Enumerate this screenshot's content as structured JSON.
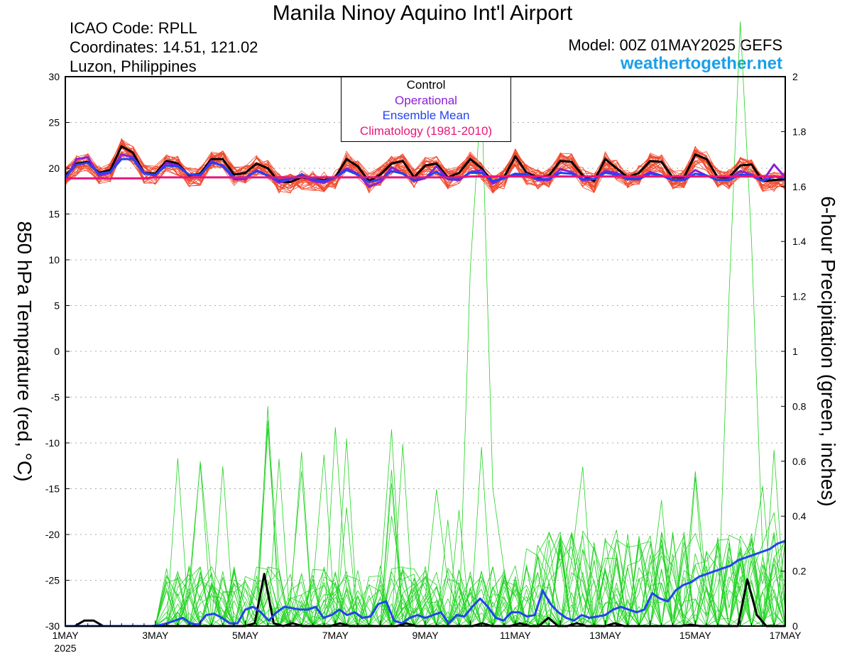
{
  "header": {
    "title": "Manila Ninoy Aquino Int'l Airport",
    "icao": "ICAO Code: RPLL",
    "coordinates": "Coordinates: 14.51, 121.02",
    "region": "Luzon, Philippines",
    "model": "Model: 00Z 01MAY2025 GEFS",
    "site": "weathertogether.net"
  },
  "legend": {
    "control": "Control",
    "operational": "Operational",
    "ensemble_mean": "Ensemble Mean",
    "climatology": "Climatology (1981-2010)"
  },
  "colors": {
    "members_temp": "#f04a2e",
    "members_precip": "#22d322",
    "control": "#000000",
    "operational": "#8b20d6",
    "ensemble_mean": "#2244ee",
    "climatology": "#e8167a",
    "site": "#1a9fea",
    "grid": "#aaaaaa"
  },
  "chart_data": {
    "type": "line",
    "title": "Manila Ninoy Aquino Int'l Airport",
    "xlabel": "",
    "ylabel": "850 hPa Temprature (red, °C)",
    "y2label": "6-hour Precipitation (green, inches)",
    "xlim": [
      0,
      64
    ],
    "ylim": [
      -30,
      30
    ],
    "y2lim": [
      0,
      2
    ],
    "x_ticks": [
      {
        "x": 0,
        "label": "1MAY",
        "sublabel": "2025"
      },
      {
        "x": 8,
        "label": "3MAY"
      },
      {
        "x": 16,
        "label": "5MAY"
      },
      {
        "x": 24,
        "label": "7MAY"
      },
      {
        "x": 32,
        "label": "9MAY"
      },
      {
        "x": 40,
        "label": "11MAY"
      },
      {
        "x": 48,
        "label": "13MAY"
      },
      {
        "x": 56,
        "label": "15MAY"
      },
      {
        "x": 64,
        "label": "17MAY"
      }
    ],
    "y_ticks": [
      30,
      25,
      20,
      15,
      10,
      5,
      0,
      -5,
      -10,
      -15,
      -20,
      -25,
      -30
    ],
    "y2_ticks": [
      {
        "v": 2,
        "label": "2"
      },
      {
        "v": 1.8,
        "label": "1.8"
      },
      {
        "v": 1.6,
        "label": "1.6"
      },
      {
        "v": 1.4,
        "label": "1.4"
      },
      {
        "v": 1.2,
        "label": "1.2"
      },
      {
        "v": 1,
        "label": "1"
      },
      {
        "v": 0.8,
        "label": "0.8"
      },
      {
        "v": 0.6,
        "label": "0.6"
      },
      {
        "v": 0.4,
        "label": "0.4"
      },
      {
        "v": 0.2,
        "label": "0.2"
      },
      {
        "v": 0,
        "label": "0"
      }
    ],
    "grid": true,
    "series": [
      {
        "name": "Control",
        "axis": "left",
        "values": [
          19.2,
          20.5,
          20.7,
          19.5,
          19.8,
          22.4,
          21.7,
          19.5,
          19.4,
          20.8,
          20.5,
          19.2,
          19.4,
          21.0,
          21.0,
          19.3,
          19.5,
          20.5,
          20.0,
          18.5,
          18.5,
          19.0,
          18.8,
          18.7,
          19.0,
          21.0,
          20.2,
          18.6,
          19.3,
          20.5,
          20.8,
          19.0,
          20.3,
          20.5,
          19.0,
          19.5,
          21.0,
          20.0,
          18.5,
          19.0,
          21.3,
          19.5,
          19.0,
          19.2,
          20.8,
          20.7,
          19.2,
          18.6,
          21.0,
          20.0,
          19.0,
          19.5,
          20.8,
          20.7,
          19.0,
          19.0,
          21.5,
          21.0,
          19.0,
          19.0,
          20.3,
          20.4,
          18.6,
          18.7,
          18.8
        ]
      },
      {
        "name": "Operational",
        "axis": "left",
        "values": [
          18.8,
          21.0,
          21.2,
          19.2,
          19.5,
          21.5,
          21.2,
          19.5,
          19.2,
          20.6,
          20.3,
          19.3,
          19.2,
          20.8,
          20.2,
          18.8,
          18.8,
          19.8,
          19.2,
          18.4,
          18.8,
          19.2,
          18.6,
          18.4,
          19.0,
          20.0,
          19.4,
          18.0,
          18.5,
          20.1,
          19.4,
          18.6,
          18.9,
          20.2,
          18.8,
          18.7,
          19.6,
          19.8,
          18.3,
          19.0,
          19.2,
          19.4,
          18.7,
          18.7,
          19.9,
          19.6,
          18.7,
          18.8,
          19.7,
          19.5,
          18.9,
          18.9,
          19.6,
          19.2,
          18.7,
          18.8,
          19.8,
          19.2,
          18.7,
          18.8,
          19.7,
          19.3,
          18.6,
          20.4,
          19.0
        ]
      },
      {
        "name": "Ensemble Mean",
        "axis": "left",
        "values": [
          19.0,
          20.4,
          20.6,
          19.4,
          19.6,
          21.0,
          21.0,
          19.4,
          19.3,
          20.3,
          20.2,
          19.3,
          19.3,
          20.6,
          20.3,
          19.0,
          19.0,
          19.7,
          19.2,
          18.7,
          18.8,
          19.3,
          18.8,
          18.6,
          19.0,
          19.8,
          19.3,
          18.5,
          18.8,
          19.7,
          19.4,
          18.7,
          19.0,
          19.6,
          18.8,
          18.8,
          19.5,
          19.5,
          18.6,
          18.9,
          19.4,
          19.3,
          18.8,
          18.8,
          19.5,
          19.4,
          18.8,
          18.8,
          19.5,
          19.3,
          18.8,
          18.8,
          19.4,
          19.2,
          18.7,
          18.7,
          19.4,
          19.2,
          18.7,
          18.7,
          19.3,
          19.2,
          18.6,
          19.1,
          18.9
        ]
      },
      {
        "name": "Climatology (1981-2010)",
        "axis": "left",
        "values": [
          18.9,
          18.9,
          18.9,
          18.9,
          18.9,
          18.9,
          18.9,
          18.9,
          19.0,
          19.0,
          19.0,
          19.0,
          19.0,
          19.0,
          19.0,
          19.0,
          19.0,
          19.0,
          19.0,
          19.0,
          19.0,
          19.0,
          19.0,
          19.0,
          19.0,
          19.0,
          19.0,
          19.0,
          19.0,
          19.0,
          19.0,
          19.0,
          19.0,
          19.0,
          19.0,
          19.0,
          19.1,
          19.1,
          19.1,
          19.1,
          19.1,
          19.1,
          19.1,
          19.1,
          19.1,
          19.1,
          19.1,
          19.1,
          19.1,
          19.1,
          19.1,
          19.1,
          19.1,
          19.1,
          19.1,
          19.1,
          19.1,
          19.1,
          19.1,
          19.1,
          19.1,
          19.1,
          19.1,
          19.1,
          19.1
        ]
      },
      {
        "name": "Control",
        "axis": "right",
        "values": [
          0,
          0,
          0.02,
          0.02,
          0,
          0,
          0,
          0,
          0,
          0,
          0,
          0,
          0,
          0,
          0,
          0,
          0,
          0,
          0,
          0,
          0.01,
          0.19,
          0.01,
          0,
          0.01,
          0,
          0,
          0,
          0,
          0.01,
          0,
          0,
          0,
          0,
          0,
          0,
          0.01,
          0,
          0,
          0,
          0,
          0,
          0,
          0,
          0.01,
          0,
          0,
          0,
          0.01,
          0,
          0,
          0.03,
          0,
          0,
          0.01,
          0,
          0,
          0,
          0.01,
          0,
          0,
          0,
          0,
          0,
          0,
          0,
          0.005,
          0,
          0,
          0,
          0,
          0,
          0.17,
          0.04,
          0,
          0,
          0
        ]
      },
      {
        "name": "Ensemble Mean",
        "axis": "right",
        "values": [
          0,
          0,
          0,
          0,
          0,
          0,
          0,
          0,
          0,
          0,
          0,
          0,
          0.003,
          0.01,
          0.02,
          0.03,
          0.01,
          0.005,
          0.04,
          0.045,
          0.03,
          0.01,
          0.01,
          0.06,
          0.07,
          0.05,
          0.02,
          0.05,
          0.07,
          0.065,
          0.06,
          0.06,
          0.07,
          0.03,
          0.04,
          0.06,
          0.04,
          0.05,
          0.03,
          0.035,
          0.08,
          0.09,
          0.02,
          0.01,
          0.03,
          0.04,
          0.03,
          0.04,
          0.05,
          0.01,
          0.04,
          0.035,
          0.07,
          0.1,
          0.07,
          0.03,
          0.02,
          0.05,
          0.05,
          0.035,
          0.04,
          0.13,
          0.08,
          0.05,
          0.03,
          0.02,
          0.04,
          0.03,
          0.035,
          0.04,
          0.06,
          0.07,
          0.06,
          0.05,
          0.06,
          0.12,
          0.1,
          0.09,
          0.13,
          0.15,
          0.16,
          0.18,
          0.19,
          0.2,
          0.21,
          0.22,
          0.24,
          0.25,
          0.26,
          0.27,
          0.28,
          0.3,
          0.31
        ]
      }
    ]
  }
}
